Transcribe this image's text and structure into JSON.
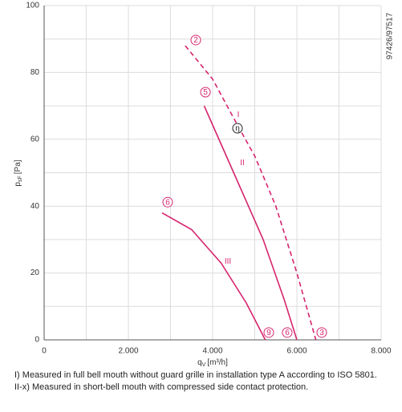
{
  "chart_data": {
    "type": "line",
    "y_label": {
      "main": "p",
      "sub": "sF",
      "unit": "[Pa]"
    },
    "x_label": {
      "main": "q",
      "sub": "V",
      "unit": "[m³/h]"
    },
    "code": "97426/97517",
    "xlim": [
      0,
      8000
    ],
    "xticks": [
      0,
      {
        "value": 1000,
        "label": null
      },
      {
        "value": 2000,
        "label": "2.000"
      },
      {
        "value": 3000,
        "label": null
      },
      {
        "value": 4000,
        "label": "4.000"
      },
      {
        "value": 5000,
        "label": null
      },
      {
        "value": 6000,
        "label": "6.000"
      },
      {
        "value": 7000,
        "label": null
      },
      {
        "value": 8000,
        "label": "8.000"
      }
    ],
    "ylim": [
      0,
      100
    ],
    "yticks": [
      0,
      {
        "value": 10,
        "label": null
      },
      20,
      {
        "value": 30,
        "label": null
      },
      40,
      {
        "value": 50,
        "label": null
      },
      60,
      {
        "value": 70,
        "label": null
      },
      80,
      {
        "value": 90,
        "label": null
      },
      100
    ],
    "grid": true,
    "color": "#d6246e",
    "series": [
      {
        "x": [
          3350,
          4000,
          4600,
          5000,
          5500,
          6000,
          6450
        ],
        "values": [
          88,
          78,
          64,
          55,
          40,
          20,
          0
        ],
        "dashed": true
      },
      {
        "x": [
          3800,
          4500,
          5200,
          5700,
          6000
        ],
        "values": [
          70,
          50,
          30,
          12,
          0
        ],
        "dashed": false
      },
      {
        "x": [
          2800,
          3500,
          4200,
          4800,
          5250
        ],
        "values": [
          38,
          33,
          23,
          11,
          0
        ],
        "dashed": false
      }
    ],
    "annotations": [
      {
        "text": "2",
        "x": 3600,
        "y": 89.7,
        "circled": true
      },
      {
        "text": "5",
        "x": 3829,
        "y": 74.1,
        "circled": true
      },
      {
        "text": "6",
        "x": 2933,
        "y": 41.2,
        "circled": true
      },
      {
        "text": "η",
        "x": 4590,
        "y": 63.3,
        "circled": true
      },
      {
        "text": "9",
        "x": 5333,
        "y": 2.2,
        "circled": true
      },
      {
        "text": "6",
        "x": 5771,
        "y": 2.2,
        "circled": true
      },
      {
        "text": "3",
        "x": 6590,
        "y": 2.2,
        "circled": true
      },
      {
        "text": "I",
        "x": 4610,
        "y": 67.4,
        "circled": false
      },
      {
        "text": "II",
        "x": 4705,
        "y": 53,
        "circled": false
      },
      {
        "text": "III",
        "x": 4362,
        "y": 23.5,
        "circled": false
      }
    ],
    "notes": [
      "I) Measured in full bell mouth without guard grille in installation type A according to ISO 5801.",
      "II-x) Measured in short-bell mouth with compressed side contact protection."
    ]
  }
}
